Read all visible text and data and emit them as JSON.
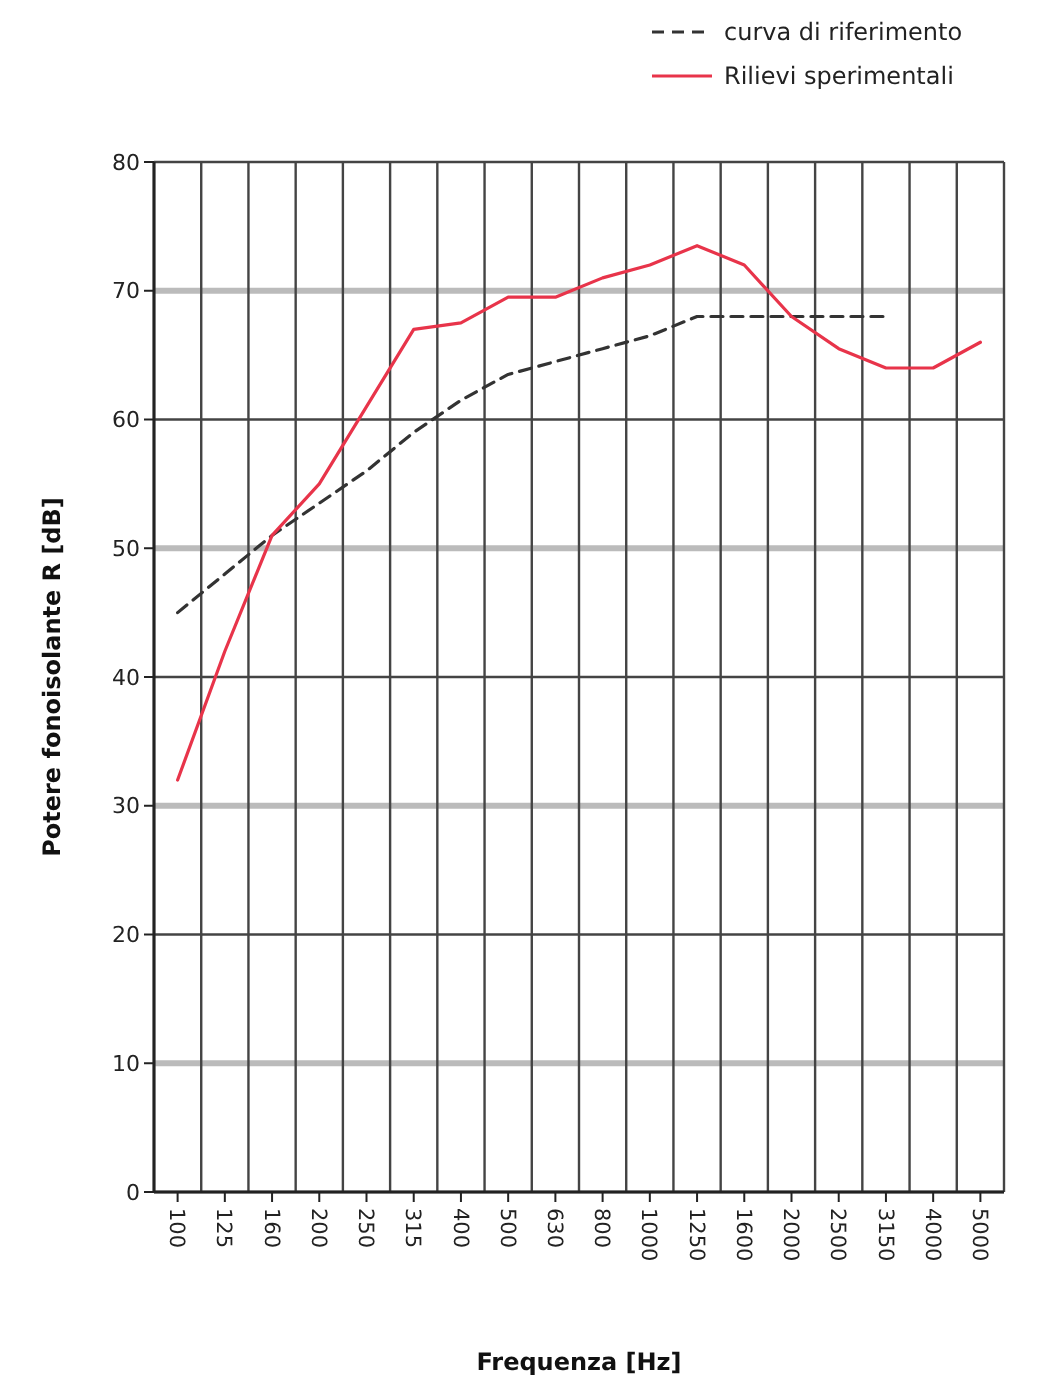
{
  "chart_data": {
    "type": "line",
    "xlabel": "Frequenza [Hz]",
    "ylabel": "Potere fonoisolante R [dB]",
    "categories": [
      "100",
      "125",
      "160",
      "200",
      "250",
      "315",
      "400",
      "500",
      "630",
      "800",
      "1000",
      "1250",
      "1600",
      "2000",
      "2500",
      "3150",
      "4000",
      "5000"
    ],
    "series": [
      {
        "name": "curva di riferimento",
        "color": "#333333",
        "line_style": "dashed",
        "values": [
          45,
          48,
          51,
          53.5,
          56,
          59,
          61.5,
          63.5,
          64.5,
          65.5,
          66.5,
          68,
          68,
          68,
          68,
          68,
          null,
          null
        ]
      },
      {
        "name": "Rilievi sperimentali",
        "color": "#e8344a",
        "line_style": "solid",
        "values": [
          32,
          42,
          51,
          55,
          61,
          67,
          67.5,
          69.5,
          69.5,
          71,
          72,
          73.5,
          72,
          68,
          65.5,
          64,
          64,
          66
        ]
      }
    ],
    "ylim": [
      0,
      80
    ],
    "yticks": [
      0,
      10,
      20,
      30,
      40,
      50,
      60,
      70,
      80
    ],
    "grid": true,
    "legend": "top right",
    "marker": "none"
  }
}
